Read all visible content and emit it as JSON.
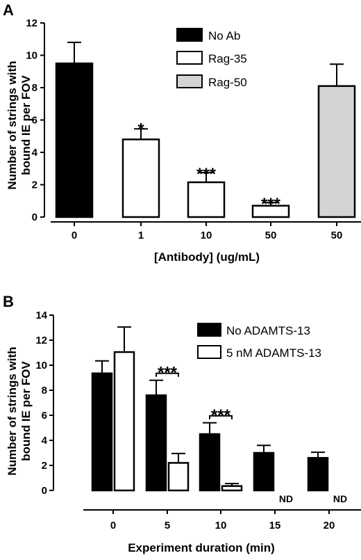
{
  "chart_data": [
    {
      "panel": "A",
      "type": "bar",
      "xlabel": "[Antibody] (ug/mL)",
      "ylabel": [
        "Number of strings with",
        "bound IE per FOV"
      ],
      "ylim": [
        0,
        12
      ],
      "yticks": [
        0,
        2,
        4,
        6,
        8,
        10,
        12
      ],
      "categories": [
        "0",
        "1",
        "10",
        "50",
        "50"
      ],
      "bars": [
        {
          "category": "0",
          "group": "No Ab",
          "value": 9.5,
          "error": 1.3,
          "label": ""
        },
        {
          "category": "1",
          "group": "Rag-35",
          "value": 4.8,
          "error": 0.65,
          "label": "*"
        },
        {
          "category": "10",
          "group": "Rag-35",
          "value": 2.15,
          "error": 0.6,
          "label": "***"
        },
        {
          "category": "50",
          "group": "Rag-35",
          "value": 0.7,
          "error": 0.2,
          "label": "***"
        },
        {
          "category": "50",
          "group": "Rag-50",
          "value": 8.1,
          "error": 1.35,
          "label": ""
        }
      ],
      "legend": [
        {
          "name": "No Ab",
          "color": "#000000"
        },
        {
          "name": "Rag-35",
          "color": "#ffffff"
        },
        {
          "name": "Rag-50",
          "color": "#d4d4d4"
        }
      ],
      "legend_position": "top-right",
      "grid": false
    },
    {
      "panel": "B",
      "type": "bar",
      "xlabel": "Experiment duration (min)",
      "ylabel": [
        "Number of strings with",
        "bound IE per FOV"
      ],
      "ylim": [
        0,
        14
      ],
      "yticks": [
        0,
        2,
        4,
        6,
        8,
        10,
        12,
        14
      ],
      "categories": [
        "0",
        "5",
        "10",
        "15",
        "20"
      ],
      "series": [
        {
          "name": "No ADAMTS-13",
          "color": "#000000",
          "values": [
            9.35,
            7.6,
            4.5,
            3.0,
            2.6
          ],
          "errors": [
            1.0,
            1.2,
            0.9,
            0.6,
            0.45
          ]
        },
        {
          "name": "5 nM ADAMTS-13",
          "color": "#ffffff",
          "values": [
            11.05,
            2.2,
            0.35,
            null,
            null
          ],
          "errors": [
            2.0,
            0.75,
            0.2,
            null,
            null
          ]
        }
      ],
      "not_determined": {
        "label": "ND",
        "categories": [
          "15",
          "20"
        ]
      },
      "significance": [
        {
          "category": "5",
          "label": "***"
        },
        {
          "category": "10",
          "label": "***"
        }
      ],
      "legend_position": "top-right",
      "grid": false
    }
  ]
}
